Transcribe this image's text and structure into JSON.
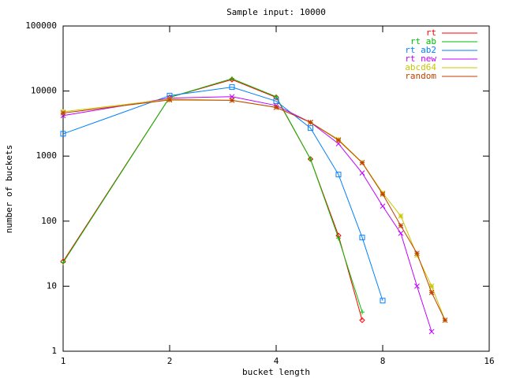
{
  "chart_data": {
    "type": "line",
    "title": "Sample input: 10000",
    "xlabel": "bucket length",
    "ylabel": "number of buckets",
    "xlog": true,
    "ylog": true,
    "xlim": [
      1,
      16
    ],
    "xticks": [
      1,
      2,
      4,
      8,
      16
    ],
    "ylim": [
      1,
      100000
    ],
    "yticks": [
      1,
      10,
      100,
      1000,
      10000,
      100000
    ],
    "legend": "top-right",
    "series": [
      {
        "name": "rt",
        "color": "#ff0000",
        "marker": "diamond",
        "x": [
          1,
          2,
          3,
          4,
          5,
          6,
          7
        ],
        "values": [
          24,
          8000,
          15000,
          8000,
          900,
          60,
          3
        ]
      },
      {
        "name": "rt ab",
        "color": "#00c000",
        "marker": "plus",
        "x": [
          1,
          2,
          3,
          4,
          5,
          6,
          7
        ],
        "values": [
          23,
          8000,
          15500,
          8200,
          900,
          55,
          4
        ]
      },
      {
        "name": "rt ab2",
        "color": "#0080ff",
        "marker": "square",
        "x": [
          1,
          2,
          3,
          4,
          5,
          6,
          7,
          8
        ],
        "values": [
          2200,
          8500,
          11500,
          7000,
          2700,
          520,
          56,
          6
        ]
      },
      {
        "name": "rt new",
        "color": "#c000ff",
        "marker": "cross",
        "x": [
          1,
          2,
          3,
          4,
          5,
          6,
          7,
          8,
          9,
          10,
          11
        ],
        "values": [
          4200,
          7800,
          8200,
          6000,
          3300,
          1550,
          550,
          170,
          65,
          10,
          2
        ]
      },
      {
        "name": "abcd64",
        "color": "#c8c800",
        "marker": "star",
        "x": [
          1,
          2,
          3,
          4,
          5,
          6,
          7,
          8,
          9,
          10,
          11,
          12
        ],
        "values": [
          4800,
          7500,
          7200,
          5600,
          3300,
          1800,
          800,
          270,
          120,
          30,
          10,
          3
        ]
      },
      {
        "name": "random",
        "color": "#c04000",
        "marker": "star",
        "x": [
          1,
          2,
          3,
          4,
          5,
          6,
          7,
          8,
          9,
          10,
          11,
          12
        ],
        "values": [
          4600,
          7300,
          7200,
          5600,
          3300,
          1750,
          790,
          260,
          85,
          32,
          8,
          3
        ]
      }
    ]
  }
}
